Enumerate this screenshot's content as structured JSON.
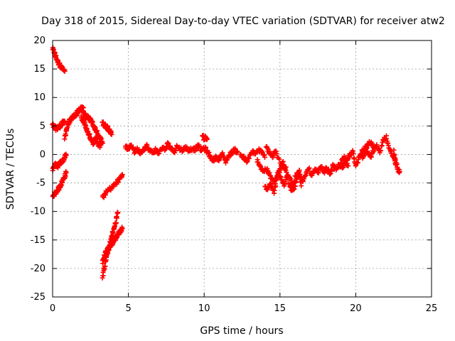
{
  "chart_data": {
    "type": "scatter",
    "title": "Day 318 of 2015, Sidereal Day-to-day VTEC variation (SDTVAR) for receiver atw2",
    "xlabel": "GPS time / hours",
    "ylabel": "SDTVAR / TECUs",
    "xlim": [
      0,
      25
    ],
    "ylim": [
      -25,
      20
    ],
    "xticks": [
      0,
      5,
      10,
      15,
      20,
      25
    ],
    "yticks": [
      -25,
      -20,
      -15,
      -10,
      -5,
      0,
      5,
      10,
      15,
      20
    ],
    "grid": true,
    "marker": "+",
    "series": [
      {
        "name": "SDTVAR",
        "color": "#ff0000",
        "segments": [
          {
            "x": [
              0.0,
              0.1,
              0.2,
              0.3,
              0.4,
              0.5,
              0.6,
              0.7,
              0.8
            ],
            "y": [
              18.5,
              18.0,
              17.2,
              16.5,
              16.0,
              15.6,
              15.2,
              14.9,
              14.6
            ]
          },
          {
            "x": [
              0.0,
              0.1,
              0.2,
              0.3,
              0.4,
              0.5,
              0.6,
              0.7,
              0.8
            ],
            "y": [
              5.2,
              4.8,
              4.6,
              4.6,
              4.8,
              5.0,
              5.3,
              5.6,
              5.8
            ]
          },
          {
            "x": [
              0.0,
              0.1,
              0.2,
              0.3,
              0.4,
              0.5,
              0.6,
              0.7,
              0.8,
              0.9
            ],
            "y": [
              -2.5,
              -2.0,
              -1.8,
              -2.2,
              -1.9,
              -1.5,
              -1.2,
              -1.0,
              -0.5,
              -0.1
            ]
          },
          {
            "x": [
              0.0,
              0.1,
              0.2,
              0.3,
              0.4,
              0.5,
              0.6,
              0.7,
              0.8,
              0.9
            ],
            "y": [
              -7.5,
              -7.0,
              -6.8,
              -6.3,
              -6.0,
              -5.5,
              -5.0,
              -4.4,
              -3.8,
              -3.2
            ]
          },
          {
            "x": [
              0.8,
              0.9,
              1.0,
              1.1,
              1.2,
              1.3,
              1.4,
              1.5,
              1.6,
              1.7,
              1.8,
              1.9,
              2.0,
              2.1,
              2.2,
              2.3,
              2.4,
              2.5,
              2.6,
              2.7,
              2.8,
              2.9,
              3.0,
              3.1,
              3.2,
              3.3
            ],
            "y": [
              3.0,
              4.0,
              5.2,
              5.8,
              6.2,
              6.5,
              6.8,
              7.0,
              7.3,
              7.6,
              7.9,
              8.2,
              8.0,
              7.2,
              6.6,
              6.5,
              6.3,
              6.0,
              5.6,
              5.0,
              4.5,
              4.0,
              3.5,
              3.0,
              2.5,
              2.0
            ]
          },
          {
            "x": [
              1.9,
              2.0,
              2.1,
              2.2,
              2.3,
              2.4,
              2.5,
              2.6,
              2.7,
              2.8,
              2.9,
              3.0,
              3.1,
              3.2
            ],
            "y": [
              6.5,
              6.0,
              5.5,
              4.8,
              4.0,
              3.5,
              3.0,
              2.5,
              2.0,
              2.5,
              3.0,
              1.8,
              1.5,
              2.0
            ]
          },
          {
            "x": [
              3.3,
              3.4,
              3.5,
              3.6,
              3.7,
              3.8,
              3.9
            ],
            "y": [
              5.5,
              5.2,
              5.0,
              4.7,
              4.3,
              4.0,
              3.5
            ]
          },
          {
            "x": [
              3.3,
              3.5,
              3.7,
              3.9,
              4.1,
              4.3,
              4.5,
              4.6
            ],
            "y": [
              -7.5,
              -6.8,
              -6.2,
              -5.8,
              -5.3,
              -4.7,
              -4.0,
              -3.5
            ]
          },
          {
            "x": [
              3.3,
              3.4,
              3.5,
              3.6,
              3.7,
              3.8,
              3.9,
              4.0,
              4.1,
              4.2,
              4.3,
              4.4,
              4.5,
              4.6
            ],
            "y": [
              -19.0,
              -18.0,
              -17.3,
              -16.8,
              -16.3,
              -16.0,
              -15.7,
              -15.3,
              -14.9,
              -14.5,
              -14.0,
              -13.7,
              -13.3,
              -13.0
            ]
          },
          {
            "x": [
              3.3,
              3.4,
              3.5,
              3.6,
              3.7,
              3.8,
              3.9,
              4.0,
              4.1,
              4.2,
              4.3
            ],
            "y": [
              -21.5,
              -20.0,
              -18.5,
              -17.5,
              -16.5,
              -15.5,
              -14.5,
              -13.5,
              -12.5,
              -11.5,
              -10.2
            ]
          },
          {
            "x": [
              4.8,
              5.0,
              5.2,
              5.4,
              5.6,
              5.8,
              6.0,
              6.2,
              6.4,
              6.6,
              6.8,
              7.0,
              7.2,
              7.4,
              7.6,
              7.8,
              8.0,
              8.2,
              8.4,
              8.6,
              8.8,
              9.0,
              9.2,
              9.4,
              9.6,
              9.8,
              10.0,
              10.2,
              10.4,
              10.6,
              10.8,
              11.0,
              11.2,
              11.4,
              11.6,
              11.8,
              12.0,
              12.2
            ],
            "y": [
              1.5,
              0.8,
              1.8,
              0.5,
              0.9,
              0.3,
              1.0,
              1.5,
              0.6,
              0.4,
              0.8,
              0.2,
              1.2,
              0.8,
              1.8,
              1.2,
              0.5,
              1.4,
              1.0,
              0.8,
              1.3,
              0.6,
              1.1,
              0.9,
              1.5,
              0.7,
              1.2,
              0.5,
              -0.4,
              -1.0,
              -0.5,
              -0.8,
              0.0,
              -1.2,
              -0.4,
              0.3,
              0.8,
              0.5
            ]
          },
          {
            "x": [
              9.9,
              10.0,
              10.1,
              10.2
            ],
            "y": [
              3.2,
              2.8,
              3.0,
              2.7
            ]
          },
          {
            "x": [
              12.4,
              12.6,
              12.8,
              13.0,
              13.2,
              13.4,
              13.6,
              13.8,
              14.0
            ],
            "y": [
              0.0,
              -0.6,
              -1.2,
              -0.4,
              0.5,
              0.2,
              0.8,
              0.3,
              -0.5
            ]
          },
          {
            "x": [
              13.5,
              13.7,
              13.9,
              14.1,
              14.3,
              14.5,
              14.7,
              14.9,
              15.1,
              15.3,
              15.5,
              15.7,
              15.9,
              16.1,
              16.3,
              16.5,
              16.7,
              16.9,
              17.1,
              17.3,
              17.5,
              17.7,
              17.9,
              18.1,
              18.3,
              18.5,
              18.7,
              18.9,
              19.1,
              19.3,
              19.5
            ],
            "y": [
              -1.0,
              -2.0,
              -3.0,
              -2.5,
              -3.5,
              -4.5,
              -5.0,
              -3.0,
              -4.5,
              -5.5,
              -3.5,
              -4.0,
              -6.0,
              -4.5,
              -3.0,
              -5.0,
              -3.5,
              -2.5,
              -3.8,
              -2.8,
              -3.2,
              -2.2,
              -3.0,
              -2.5,
              -3.3,
              -2.0,
              -2.8,
              -1.8,
              -2.4,
              -1.5,
              -2.0
            ]
          },
          {
            "x": [
              14.0,
              14.2,
              14.4,
              14.6,
              14.8,
              15.0,
              15.2,
              15.4,
              15.6,
              15.8,
              16.0,
              16.2,
              16.4
            ],
            "y": [
              -5.5,
              -6.0,
              -5.0,
              -6.5,
              -4.0,
              -2.5,
              -1.5,
              -3.0,
              -5.0,
              -6.5,
              -4.0,
              -3.2,
              -5.5
            ]
          },
          {
            "x": [
              14.1,
              14.3,
              14.5,
              14.7,
              15.0,
              15.4
            ],
            "y": [
              1.2,
              0.3,
              -0.5,
              0.6,
              -1.5,
              -2.2
            ]
          },
          {
            "x": [
              19.0,
              19.2,
              19.4,
              19.6,
              19.8,
              20.0,
              20.2,
              20.4,
              20.6,
              20.8,
              21.0,
              21.2,
              21.4,
              21.6,
              21.8,
              22.0,
              22.2,
              22.4,
              22.6
            ],
            "y": [
              -1.5,
              -0.5,
              -1.0,
              0.0,
              0.5,
              -1.8,
              -0.8,
              0.5,
              1.2,
              0.3,
              -0.5,
              0.8,
              1.5,
              0.2,
              2.5,
              3.0,
              1.0,
              0.0,
              -1.0
            ]
          },
          {
            "x": [
              20.4,
              20.6,
              20.8,
              21.0,
              21.2
            ],
            "y": [
              -0.5,
              0.3,
              1.8,
              2.2,
              1.0
            ]
          },
          {
            "x": [
              22.5,
              22.6,
              22.7,
              22.8,
              22.9
            ],
            "y": [
              0.5,
              -1.2,
              -2.0,
              -2.8,
              -3.0
            ]
          }
        ]
      }
    ]
  }
}
